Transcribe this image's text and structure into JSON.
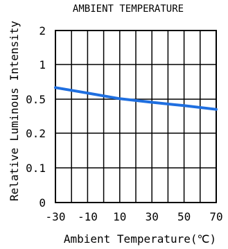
{
  "chart_data": {
    "type": "line",
    "title": "AMBIENT TEMPERATURE",
    "xlabel": "Ambient Temperature(℃)",
    "ylabel": "Relative Luminous Intensity",
    "xlim": [
      -30,
      70
    ],
    "x_ticks": [
      -30,
      -10,
      10,
      30,
      50,
      70
    ],
    "x_tick_labels": [
      "-30",
      "-10",
      "10",
      "30",
      "50",
      "70"
    ],
    "y_scale": "log",
    "ylim": [
      0.01,
      2
    ],
    "y_ticks": [
      0.01,
      0.1,
      0.2,
      0.5,
      1,
      2
    ],
    "y_tick_labels": [
      "0",
      "0.1",
      "0.2",
      "0.5",
      "1",
      "2"
    ],
    "grid": true,
    "series_color": "#1f6fe0",
    "series": [
      {
        "x": [
          -30,
          -10,
          10,
          30,
          50,
          70
        ],
        "y": [
          0.63,
          0.565,
          0.505,
          0.46,
          0.42,
          0.38
        ]
      }
    ]
  }
}
